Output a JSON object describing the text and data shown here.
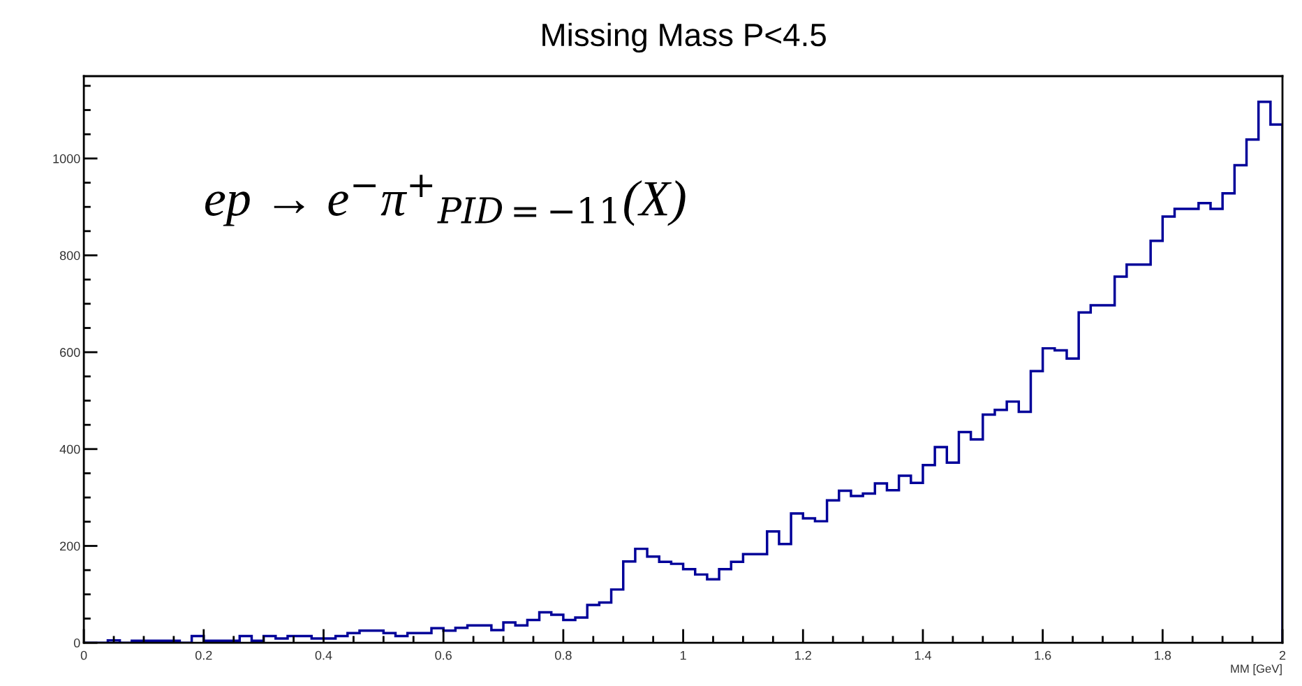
{
  "chart_data": {
    "type": "histogram",
    "title": "Missing Mass P<4.5",
    "xlabel": "MM [GeV]",
    "annotations": [
      "ep → e$^{−}$π$^{+}$$_{PID=−11}$(X)"
    ],
    "bins": [
      0,
      0.02,
      0.04,
      0.06,
      0.08,
      0.1,
      0.12,
      0.14,
      0.16,
      0.18,
      0.2,
      0.22,
      0.24,
      0.26,
      0.28,
      0.3,
      0.32,
      0.34,
      0.36,
      0.38,
      0.4,
      0.42,
      0.44,
      0.46,
      0.48,
      0.5,
      0.52,
      0.54,
      0.56,
      0.58,
      0.6,
      0.62,
      0.64,
      0.66,
      0.68,
      0.7,
      0.72,
      0.74,
      0.76,
      0.78,
      0.8,
      0.82,
      0.84,
      0.86,
      0.88,
      0.9,
      0.92,
      0.94,
      0.96,
      0.98,
      1.0,
      1.02,
      1.04,
      1.06,
      1.08,
      1.1,
      1.12,
      1.14,
      1.16,
      1.18,
      1.2,
      1.22,
      1.24,
      1.26,
      1.28,
      1.3,
      1.32,
      1.34,
      1.36,
      1.38,
      1.4,
      1.42,
      1.44,
      1.46,
      1.48,
      1.5,
      1.52,
      1.54,
      1.56,
      1.58,
      1.6,
      1.62,
      1.64,
      1.66,
      1.68,
      1.7,
      1.72,
      1.74,
      1.76,
      1.78,
      1.8,
      1.82,
      1.84,
      1.86,
      1.88,
      1.9,
      1.92,
      1.94,
      1.96,
      1.98,
      2.0
    ],
    "values": [
      0,
      0,
      5,
      0,
      4,
      4,
      4,
      4,
      0,
      14,
      4,
      4,
      4,
      14,
      4,
      14,
      9,
      14,
      14,
      9,
      9,
      14,
      20,
      25,
      25,
      20,
      14,
      20,
      20,
      30,
      25,
      31,
      36,
      36,
      26,
      42,
      36,
      47,
      63,
      58,
      47,
      52,
      78,
      83,
      110,
      168,
      194,
      178,
      167,
      163,
      152,
      141,
      131,
      152,
      167,
      183,
      183,
      230,
      204,
      267,
      257,
      251,
      294,
      314,
      303,
      308,
      329,
      315,
      345,
      330,
      367,
      404,
      372,
      435,
      420,
      471,
      481,
      498,
      477,
      561,
      608,
      604,
      587,
      682,
      697,
      697,
      756,
      781,
      781,
      830,
      880,
      896,
      896,
      908,
      896,
      928,
      986,
      1039,
      1117,
      1070
    ],
    "color": "#000099",
    "xlim": [
      0,
      2
    ],
    "xticks": [
      0,
      0.2,
      0.4,
      0.6,
      0.8,
      1,
      1.2,
      1.4,
      1.6,
      1.8,
      2
    ],
    "ylim": [
      0,
      1170
    ],
    "yticks": [
      0,
      200,
      400,
      600,
      800,
      1000
    ],
    "grid": false,
    "legend": false
  }
}
